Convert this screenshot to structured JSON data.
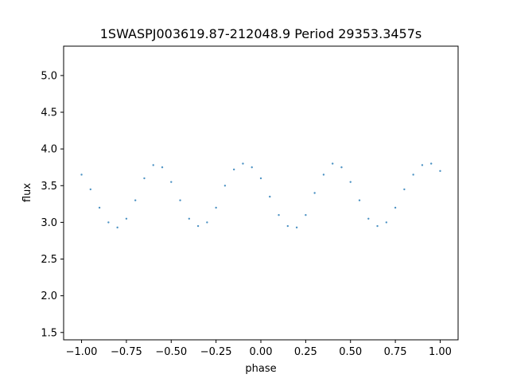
{
  "chart_data": {
    "type": "scatter",
    "title": "1SWASPJ003619.87-212048.9 Period 29353.3457s",
    "xlabel": "phase",
    "ylabel": "flux",
    "xlim": [
      -1.1,
      1.1
    ],
    "ylim": [
      1.4,
      5.4
    ],
    "xticks": [
      -1.0,
      -0.75,
      -0.5,
      -0.25,
      0.0,
      0.25,
      0.5,
      0.75,
      1.0
    ],
    "xtick_labels": [
      "−1.00",
      "−0.75",
      "−0.50",
      "−0.25",
      "0.00",
      "0.25",
      "0.50",
      "0.75",
      "1.00"
    ],
    "yticks": [
      1.5,
      2.0,
      2.5,
      3.0,
      3.5,
      4.0,
      4.5,
      5.0
    ],
    "ytick_labels": [
      "1.5",
      "2.0",
      "2.5",
      "3.0",
      "3.5",
      "4.0",
      "4.5",
      "5.0"
    ],
    "grid": false,
    "marker_color": "#1f77b4",
    "series": [
      {
        "phase": [
          -1.0,
          -0.95,
          -0.9,
          -0.85,
          -0.8,
          -0.75,
          -0.7,
          -0.65,
          -0.6,
          -0.55,
          -0.5,
          -0.45,
          -0.4,
          -0.35,
          -0.3,
          -0.25,
          -0.2,
          -0.15,
          -0.1,
          -0.05,
          0.0,
          0.05,
          0.1,
          0.15,
          0.2,
          0.25,
          0.3,
          0.35,
          0.4,
          0.45,
          0.5,
          0.55,
          0.6,
          0.65,
          0.7,
          0.75,
          0.8,
          0.85,
          0.9,
          0.95,
          1.0
        ],
        "flux": [
          3.65,
          3.45,
          3.2,
          3.0,
          2.93,
          3.05,
          3.3,
          3.6,
          3.78,
          3.75,
          3.55,
          3.3,
          3.05,
          2.95,
          3.0,
          3.2,
          3.5,
          3.72,
          3.8,
          3.75,
          3.6,
          3.35,
          3.1,
          2.95,
          2.93,
          3.1,
          3.4,
          3.65,
          3.8,
          3.75,
          3.55,
          3.3,
          3.05,
          2.95,
          3.0,
          3.2,
          3.45,
          3.65,
          3.78,
          3.8,
          3.7
        ]
      }
    ]
  }
}
